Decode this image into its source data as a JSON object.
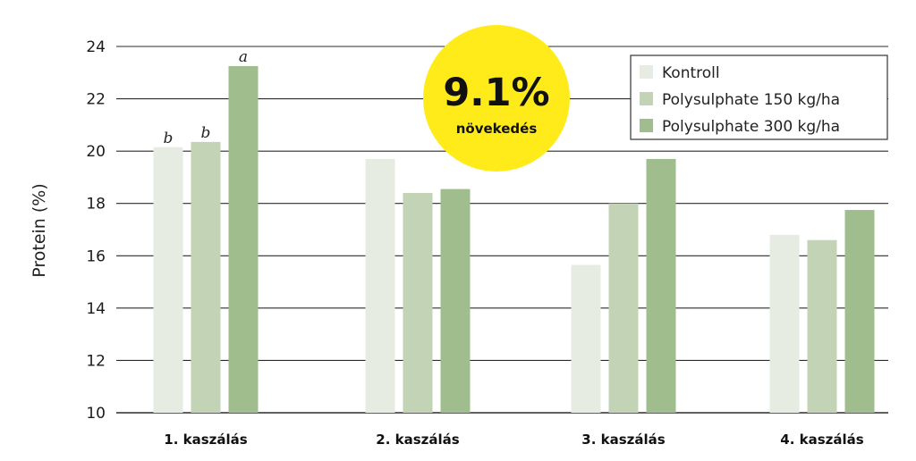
{
  "chart_data": {
    "type": "bar",
    "ylabel": "Protein  (%)",
    "ylim": [
      10,
      24
    ],
    "yticks": [
      10,
      12,
      14,
      16,
      18,
      20,
      22,
      24
    ],
    "grid": true,
    "legend_position": "top-right",
    "categories": [
      "1. kaszálás",
      "2. kaszálás",
      "3. kaszálás",
      "4. kaszálás"
    ],
    "series": [
      {
        "name": "Kontroll",
        "color": "#e6ece1",
        "values": [
          20.15,
          19.7,
          15.65,
          16.8
        ]
      },
      {
        "name": "Polysulphate 150 kg/ha",
        "color": "#c3d3b6",
        "values": [
          20.35,
          18.4,
          18.0,
          16.6
        ]
      },
      {
        "name": "Polysulphate 300 kg/ha",
        "color": "#9fbd8d",
        "values": [
          23.25,
          18.55,
          19.7,
          17.75
        ]
      }
    ],
    "annotations": [
      {
        "category": "1. kaszálás",
        "series": "Kontroll",
        "text": "b"
      },
      {
        "category": "1. kaszálás",
        "series": "Polysulphate 150 kg/ha",
        "text": "b"
      },
      {
        "category": "1. kaszálás",
        "series": "Polysulphate 300 kg/ha",
        "text": "a"
      }
    ]
  },
  "badge": {
    "value": "9.1%",
    "label": "növekedés",
    "color": "#ffeb1a"
  }
}
